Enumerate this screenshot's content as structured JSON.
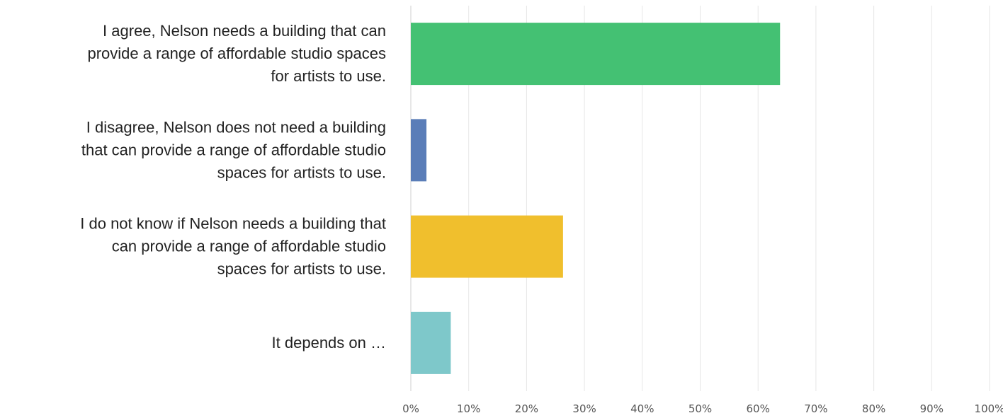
{
  "chart_data": {
    "type": "bar",
    "orientation": "horizontal",
    "title": "",
    "xlabel": "",
    "ylabel": "",
    "categories": [
      [
        "I agree, Nelson needs a building that can",
        "provide a range of affordable studio spaces",
        "for artists to use."
      ],
      [
        "I disagree, Nelson does not need a building",
        "that can provide a range of affordable studio",
        "spaces for artists to use."
      ],
      [
        "I do not know if Nelson needs a building that",
        "can provide a range of affordable studio",
        "spaces for artists to use."
      ],
      [
        "It depends on …"
      ]
    ],
    "values": [
      63.8,
      2.7,
      26.3,
      6.9
    ],
    "colors": [
      "#44c173",
      "#5a7db8",
      "#f0bf2d",
      "#7ec8ca"
    ],
    "xlim": [
      0,
      100
    ],
    "x_ticks": [
      "0%",
      "10%",
      "20%",
      "30%",
      "40%",
      "50%",
      "60%",
      "70%",
      "80%",
      "90%",
      "100%"
    ],
    "grid": true,
    "legend": "none"
  }
}
